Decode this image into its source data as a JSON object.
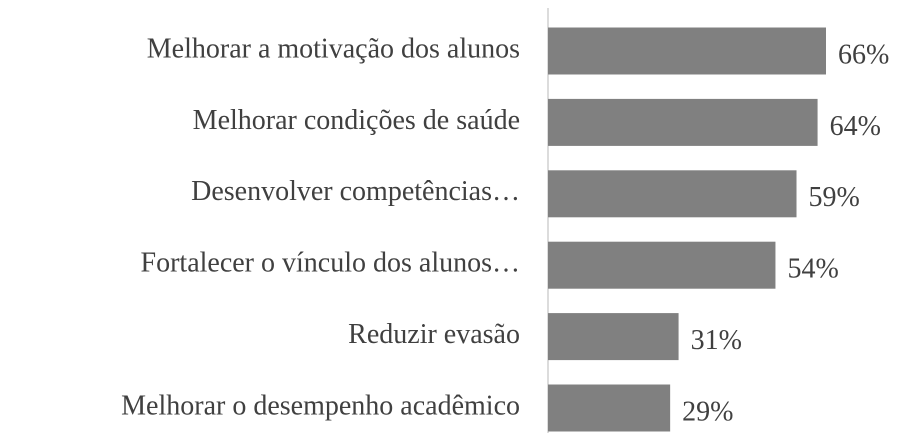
{
  "chart_data": {
    "type": "bar",
    "orientation": "horizontal",
    "categories": [
      "Melhorar a motivação dos alunos",
      "Melhorar condições de saúde",
      "Desenvolver competências…",
      "Fortalecer o vínculo dos alunos…",
      "Reduzir evasão",
      "Melhorar o desempenho acadêmico"
    ],
    "values": [
      66,
      64,
      59,
      54,
      31,
      29
    ],
    "value_labels": [
      "66%",
      "64%",
      "59%",
      "54%",
      "31%",
      "29%"
    ],
    "color": "#808080"
  }
}
